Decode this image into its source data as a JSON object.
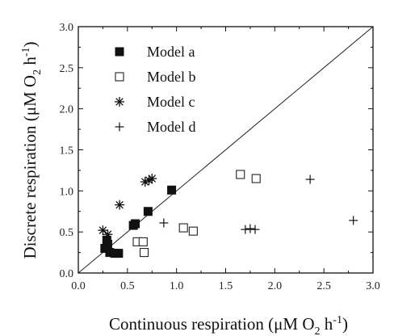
{
  "chart_data": {
    "type": "scatter",
    "xlabel": {
      "text": "Continuous respiration (μM O",
      "sub": "2",
      "mid": " h",
      "sup": "-1",
      "end": ")"
    },
    "ylabel": {
      "text": "Discrete respiration (μM O",
      "sub": "2",
      "mid": " h",
      "sup": "-1",
      "end": ")"
    },
    "xlim": [
      0,
      3
    ],
    "ylim": [
      0,
      3
    ],
    "x_ticks": [
      "0.0",
      "0.5",
      "1.0",
      "1.5",
      "2.0",
      "2.5",
      "3.0"
    ],
    "y_ticks": [
      "0.0",
      "0.5",
      "1.0",
      "1.5",
      "2.0",
      "2.5",
      "3.0"
    ],
    "grid": false,
    "legend": "top-left",
    "reference_line": {
      "from": [
        0,
        0
      ],
      "to": [
        3,
        3
      ]
    },
    "series": [
      {
        "name": "Model a",
        "marker": "filled-square",
        "points": [
          [
            0.27,
            0.3
          ],
          [
            0.29,
            0.4
          ],
          [
            0.3,
            0.35
          ],
          [
            0.32,
            0.25
          ],
          [
            0.37,
            0.24
          ],
          [
            0.41,
            0.24
          ],
          [
            0.56,
            0.58
          ],
          [
            0.58,
            0.6
          ],
          [
            0.71,
            0.75
          ],
          [
            0.95,
            1.01
          ]
        ]
      },
      {
        "name": "Model b",
        "marker": "open-square",
        "points": [
          [
            0.6,
            0.38
          ],
          [
            0.66,
            0.38
          ],
          [
            0.67,
            0.25
          ],
          [
            1.07,
            0.55
          ],
          [
            1.17,
            0.51
          ],
          [
            1.65,
            1.2
          ],
          [
            1.81,
            1.15
          ]
        ]
      },
      {
        "name": "Model c",
        "marker": "asterisk",
        "points": [
          [
            0.25,
            0.52
          ],
          [
            0.3,
            0.47
          ],
          [
            0.42,
            0.83
          ],
          [
            0.68,
            1.11
          ],
          [
            0.72,
            1.13
          ],
          [
            0.75,
            1.15
          ]
        ]
      },
      {
        "name": "Model d",
        "marker": "plus",
        "points": [
          [
            0.87,
            0.61
          ],
          [
            1.7,
            0.53
          ],
          [
            1.75,
            0.54
          ],
          [
            1.8,
            0.53
          ],
          [
            2.36,
            1.14
          ],
          [
            2.8,
            0.64
          ]
        ]
      }
    ]
  }
}
